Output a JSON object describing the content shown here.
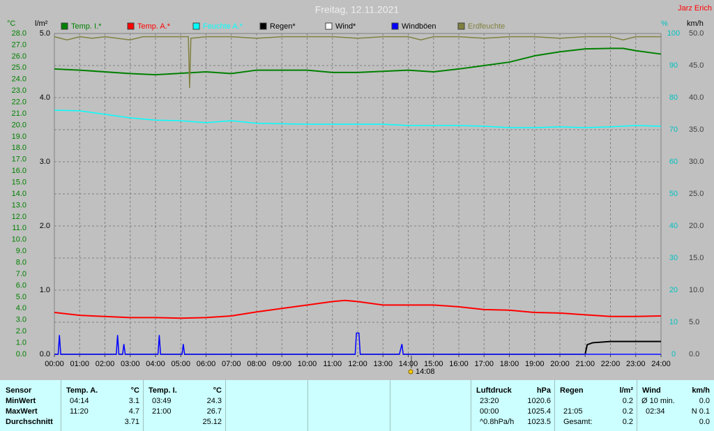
{
  "chart_data": {
    "type": "line",
    "title": "Freitag, 12.11.2021",
    "author": "Jarz Erich",
    "ylabel": "°C",
    "y2label": "l/m²",
    "y3label": "%",
    "y4label": "km/h",
    "annotation": "14:08",
    "grid": true,
    "xlim": [
      0,
      24
    ],
    "xticks": [
      {
        "value": 0,
        "label": "00:00"
      },
      {
        "value": 1,
        "label": "01:00"
      },
      {
        "value": 2,
        "label": "02:00"
      },
      {
        "value": 3,
        "label": "03:00"
      },
      {
        "value": 4,
        "label": "04:00"
      },
      {
        "value": 5,
        "label": "05:00"
      },
      {
        "value": 6,
        "label": "06:00"
      },
      {
        "value": 7,
        "label": "07:00"
      },
      {
        "value": 8,
        "label": "08:00"
      },
      {
        "value": 9,
        "label": "09:00"
      },
      {
        "value": 10,
        "label": "10:00"
      },
      {
        "value": 11,
        "label": "11:00"
      },
      {
        "value": 12,
        "label": "12:00"
      },
      {
        "value": 13,
        "label": "13:00"
      },
      {
        "value": 14,
        "label": "14:00"
      },
      {
        "value": 15,
        "label": "15:00"
      },
      {
        "value": 16,
        "label": "16:00"
      },
      {
        "value": 17,
        "label": "17:00"
      },
      {
        "value": 18,
        "label": "18:00"
      },
      {
        "value": 19,
        "label": "19:00"
      },
      {
        "value": 20,
        "label": "20:00"
      },
      {
        "value": 21,
        "label": "21:00"
      },
      {
        "value": 22,
        "label": "22:00"
      },
      {
        "value": 23,
        "label": "23:00"
      },
      {
        "value": 24,
        "label": "24:00"
      }
    ],
    "ylim": [
      0,
      28
    ],
    "yticks": [
      {
        "value": 0,
        "label": "0.0"
      },
      {
        "value": 1,
        "label": "1.0"
      },
      {
        "value": 2,
        "label": "2.0"
      },
      {
        "value": 3,
        "label": "3.0"
      },
      {
        "value": 4,
        "label": "4.0"
      },
      {
        "value": 5,
        "label": "5.0"
      },
      {
        "value": 6,
        "label": "6.0"
      },
      {
        "value": 7,
        "label": "7.0"
      },
      {
        "value": 8,
        "label": "8.0"
      },
      {
        "value": 9,
        "label": "9.0"
      },
      {
        "value": 10,
        "label": "10.0"
      },
      {
        "value": 11,
        "label": "11.0"
      },
      {
        "value": 12,
        "label": "12.0"
      },
      {
        "value": 13,
        "label": "13.0"
      },
      {
        "value": 14,
        "label": "14.0"
      },
      {
        "value": 15,
        "label": "15.0"
      },
      {
        "value": 16,
        "label": "16.0"
      },
      {
        "value": 17,
        "label": "17.0"
      },
      {
        "value": 18,
        "label": "18.0"
      },
      {
        "value": 19,
        "label": "19.0"
      },
      {
        "value": 20,
        "label": "20.0"
      },
      {
        "value": 21,
        "label": "21.0"
      },
      {
        "value": 22,
        "label": "22.0"
      },
      {
        "value": 23,
        "label": "23.0"
      },
      {
        "value": 24,
        "label": "24.0"
      },
      {
        "value": 25,
        "label": "25.0"
      },
      {
        "value": 26,
        "label": "26.0"
      },
      {
        "value": 27,
        "label": "27.0"
      },
      {
        "value": 28,
        "label": "28.0"
      }
    ],
    "y2lim": [
      0,
      5
    ],
    "y2ticks": [
      {
        "value": 0,
        "label": "0.0"
      },
      {
        "value": 1,
        "label": "1.0"
      },
      {
        "value": 2,
        "label": "2.0"
      },
      {
        "value": 3,
        "label": "3.0"
      },
      {
        "value": 4,
        "label": "4.0"
      },
      {
        "value": 5,
        "label": "5.0"
      }
    ],
    "y3lim": [
      0,
      100
    ],
    "y3ticks": [
      0,
      10,
      20,
      30,
      40,
      50,
      60,
      70,
      80,
      90,
      100
    ],
    "y4lim": [
      0,
      50
    ],
    "y4ticks": [
      {
        "value": 0,
        "label": "0.0"
      },
      {
        "value": 5,
        "label": "5.0"
      },
      {
        "value": 10,
        "label": "10.0"
      },
      {
        "value": 15,
        "label": "15.0"
      },
      {
        "value": 20,
        "label": "20.0"
      },
      {
        "value": 25,
        "label": "25.0"
      },
      {
        "value": 30,
        "label": "30.0"
      },
      {
        "value": 35,
        "label": "35.0"
      },
      {
        "value": 40,
        "label": "40.0"
      },
      {
        "value": 45,
        "label": "45.0"
      },
      {
        "value": 50,
        "label": "50.0"
      }
    ],
    "series": [
      {
        "name": "Temp. I.*",
        "color": "#008000",
        "axis": "y",
        "x": [
          0,
          1,
          3,
          4,
          6,
          7,
          8,
          10,
          11,
          12,
          14,
          15,
          16,
          17,
          18,
          19,
          20,
          21,
          22,
          22.5,
          23,
          24
        ],
        "values": [
          24.9,
          24.8,
          24.5,
          24.4,
          24.65,
          24.5,
          24.8,
          24.8,
          24.6,
          24.6,
          24.8,
          24.65,
          24.9,
          25.2,
          25.5,
          26.05,
          26.4,
          26.65,
          26.7,
          26.7,
          26.5,
          26.2
        ]
      },
      {
        "name": "Temp. A.*",
        "color": "#ff0000",
        "axis": "y",
        "x": [
          0,
          1,
          3,
          4,
          5,
          6,
          7,
          8,
          9,
          10,
          11,
          11.5,
          12,
          13,
          14,
          15,
          16,
          17,
          18,
          19,
          20,
          21,
          22,
          23,
          24
        ],
        "values": [
          3.65,
          3.4,
          3.2,
          3.2,
          3.15,
          3.2,
          3.35,
          3.7,
          4.0,
          4.3,
          4.6,
          4.7,
          4.6,
          4.3,
          4.3,
          4.3,
          4.15,
          3.9,
          3.85,
          3.65,
          3.6,
          3.45,
          3.3,
          3.3,
          3.35
        ]
      },
      {
        "name": "Feuchte A.*",
        "color": "#00ffff",
        "axis": "y3",
        "x": [
          0,
          1,
          2,
          3,
          4,
          5,
          6,
          7,
          8,
          10,
          11,
          12,
          13,
          14,
          16,
          17,
          18,
          19,
          20,
          21,
          22,
          23,
          24
        ],
        "values": [
          76.1,
          75.9,
          74.8,
          73.7,
          73,
          72.8,
          72.2,
          72.8,
          72,
          71.7,
          71.7,
          71.7,
          71.7,
          71.3,
          71.3,
          71.1,
          70.65,
          70.65,
          70.9,
          70.65,
          70.9,
          71.3,
          71.1
        ]
      },
      {
        "name": "Regen*",
        "color": "#000000",
        "axis": "y2",
        "x": [
          0,
          21,
          21.08,
          21.3,
          22,
          24
        ],
        "values": [
          0,
          0,
          0.15,
          0.18,
          0.2,
          0.2
        ]
      },
      {
        "name": "Wind*",
        "color": "#ffffff",
        "axis": "y4",
        "x": [
          0,
          24
        ],
        "values": [
          0,
          0
        ]
      },
      {
        "name": "Windböen",
        "color": "#0000ff",
        "axis": "y4",
        "x": [
          0,
          0.15,
          0.2,
          0.25,
          2.45,
          2.5,
          2.55,
          2.7,
          2.75,
          2.8,
          4.1,
          4.15,
          4.2,
          5.05,
          5.1,
          5.15,
          11.9,
          11.95,
          12.05,
          12.1,
          13.65,
          13.75,
          13.8,
          24
        ],
        "values": [
          0,
          0,
          3,
          0,
          0,
          3,
          0,
          0,
          1.6,
          0,
          0,
          3,
          0,
          0,
          1.6,
          0,
          0,
          3.3,
          3.3,
          0,
          0,
          1.6,
          0,
          0
        ]
      },
      {
        "name": "Erdfeuchte",
        "color": "#808040",
        "axis": "y3",
        "x": [
          0,
          0.5,
          1,
          1.5,
          2,
          3,
          3.5,
          4,
          5,
          5.3,
          5.35,
          5.4,
          6,
          7,
          8,
          9,
          10,
          11,
          12,
          13,
          14,
          14.5,
          15,
          16,
          17,
          18,
          19,
          20,
          21,
          22,
          22.5,
          23,
          24
        ],
        "values": [
          99,
          98,
          99,
          98.5,
          99,
          98,
          99,
          99,
          99,
          99,
          83,
          98.5,
          99,
          99,
          98.5,
          99,
          99,
          99,
          98.5,
          99,
          99,
          98,
          99,
          99,
          98.5,
          99,
          99,
          98.5,
          99,
          99,
          98,
          99,
          99
        ]
      }
    ]
  },
  "table": {
    "sensor": {
      "header": "Sensor",
      "rows": [
        "MinWert",
        "MaxWert",
        "Durchschnitt"
      ]
    },
    "groups": [
      {
        "name": "Temp. A.",
        "unit": "°C",
        "rows": [
          {
            "label": "04:14",
            "value": "3.1"
          },
          {
            "label": "11:20",
            "value": "4.7"
          },
          {
            "value": "3.71"
          }
        ]
      },
      {
        "name": "Temp. I.",
        "unit": "°C",
        "rows": [
          {
            "label": "03:49",
            "value": "24.3"
          },
          {
            "label": "21:00",
            "value": "26.7"
          },
          {
            "value": "25.12"
          }
        ]
      },
      {
        "name": "Luftdruck",
        "unit": "hPa",
        "rows": [
          {
            "label": "23:20",
            "value": "1020.6"
          },
          {
            "label": "00:00",
            "value": "1025.4"
          },
          {
            "label": "^0.8hPa/h",
            "value": "1023.5"
          }
        ]
      },
      {
        "name": "Regen",
        "unit": "l/m²",
        "rows": [
          {
            "value": "0.2"
          },
          {
            "label": "21:05",
            "value": "0.2"
          },
          {
            "label": "Gesamt:",
            "value": "0.2"
          }
        ]
      },
      {
        "name": "Wind",
        "unit": "km/h",
        "rows": [
          {
            "label": "Ø 10 min.",
            "value": "0.0"
          },
          {
            "label": "02:34",
            "value": "N 0.1"
          },
          {
            "value": "0.0"
          }
        ]
      }
    ]
  }
}
